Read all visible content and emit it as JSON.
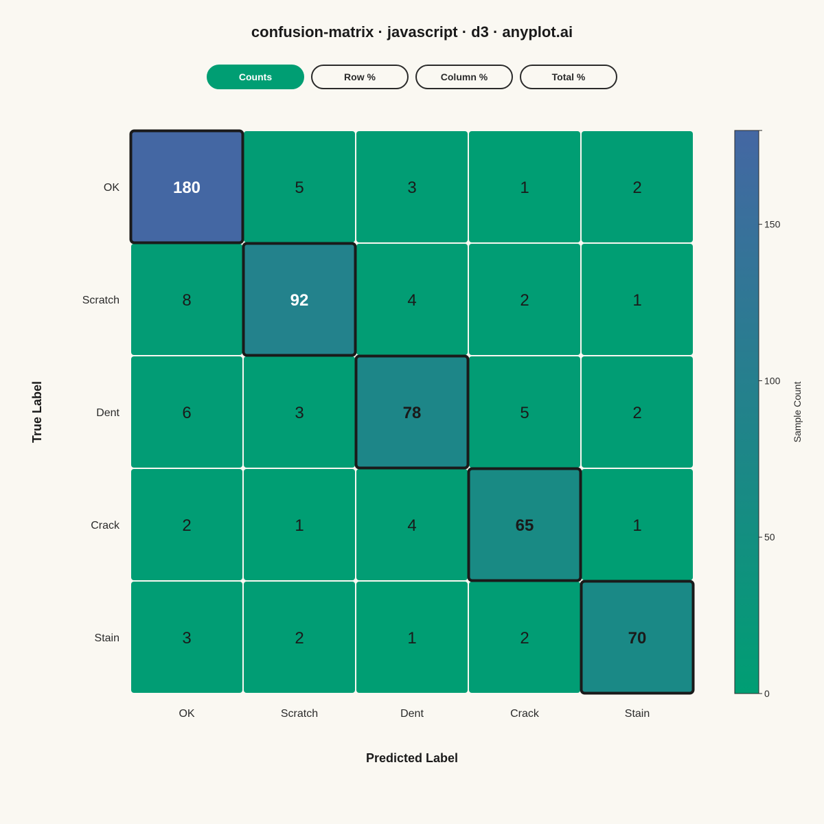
{
  "title": "confusion-matrix · javascript · d3 · anyplot.ai",
  "toggles": [
    {
      "label": "Counts",
      "active": true
    },
    {
      "label": "Row %",
      "active": false
    },
    {
      "label": "Column %",
      "active": false
    },
    {
      "label": "Total %",
      "active": false
    }
  ],
  "colors": {
    "low": "#009e73",
    "high": "#4467a3",
    "background": "#faf8f2",
    "diagonal_border": "#1a1a1a",
    "cell_gap": "#ffffff"
  },
  "chart_data": {
    "type": "heatmap",
    "xlabel": "Predicted Label",
    "ylabel": "True Label",
    "x_categories": [
      "OK",
      "Scratch",
      "Dent",
      "Crack",
      "Stain"
    ],
    "y_categories": [
      "OK",
      "Scratch",
      "Dent",
      "Crack",
      "Stain"
    ],
    "values": [
      [
        180,
        5,
        3,
        1,
        2
      ],
      [
        8,
        92,
        4,
        2,
        1
      ],
      [
        6,
        3,
        78,
        5,
        2
      ],
      [
        2,
        1,
        4,
        65,
        1
      ],
      [
        3,
        2,
        1,
        2,
        70
      ]
    ],
    "colorbar": {
      "label": "Sample Count",
      "range": [
        0,
        180
      ],
      "ticks": [
        0,
        50,
        100,
        150
      ]
    },
    "diagonal_highlighted": true,
    "legend": "right"
  }
}
